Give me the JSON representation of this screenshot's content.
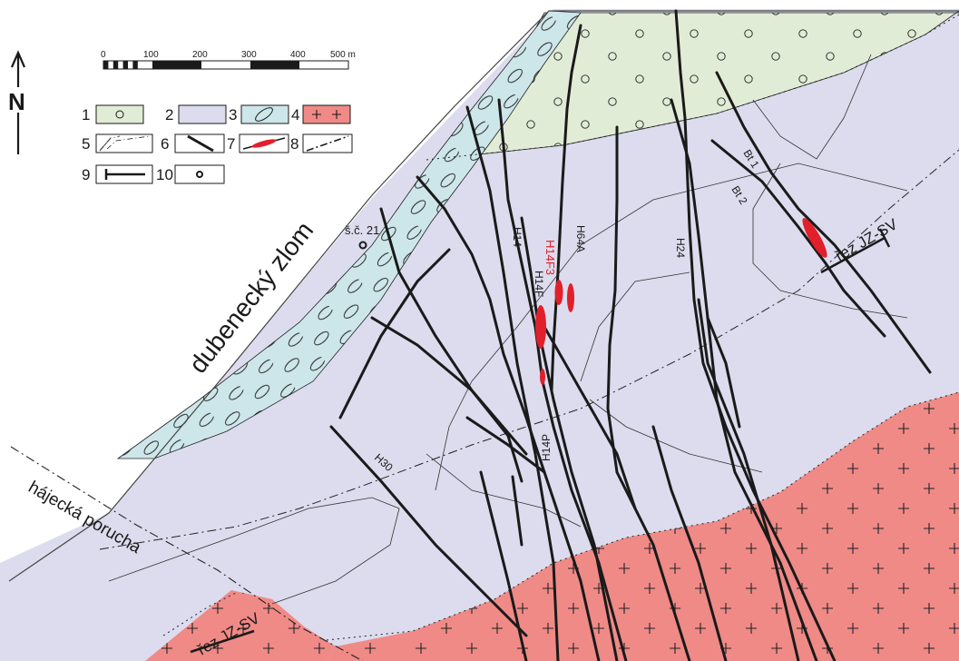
{
  "scale_bar": {
    "ticks": [
      "0",
      "100",
      "200",
      "300",
      "400",
      "500 m"
    ]
  },
  "north_arrow": {
    "label": "N"
  },
  "legend": [
    {
      "num": "1",
      "swatch": "pale-green-with-circles"
    },
    {
      "num": "2",
      "swatch": "lavender"
    },
    {
      "num": "3",
      "swatch": "light-cyan-with-ellipses"
    },
    {
      "num": "4",
      "swatch": "salmon-with-crosses"
    },
    {
      "num": "5",
      "swatch": "thin-lines-dashdot"
    },
    {
      "num": "6",
      "swatch": "thick-black-line"
    },
    {
      "num": "7",
      "swatch": "red-ore-lens"
    },
    {
      "num": "8",
      "swatch": "dashdot-line"
    },
    {
      "num": "9",
      "swatch": "section-line"
    },
    {
      "num": "10",
      "swatch": "shaft-circle"
    }
  ],
  "labels": {
    "dubenecky": "dubenecký zlom",
    "hajecka": "hájecká porucha",
    "shaft": "š.č. 21",
    "rez1": "řez JZ-SV",
    "rez2": "řez JZ-SV",
    "bt1": "Bt 1",
    "bt2": "Bt 2",
    "h14": "H14",
    "h14f": "H14F",
    "h14f3": "H14F3",
    "h64a": "H64A",
    "h24": "H24",
    "h14p": "H14P",
    "h30": "H30"
  },
  "colors": {
    "green": "#e1ecd6",
    "lavender": "#dcdcee",
    "cyan": "#cde6ea",
    "salmon": "#ef8a87",
    "ore": "#e0202a",
    "vein": "#1a1a1a"
  }
}
